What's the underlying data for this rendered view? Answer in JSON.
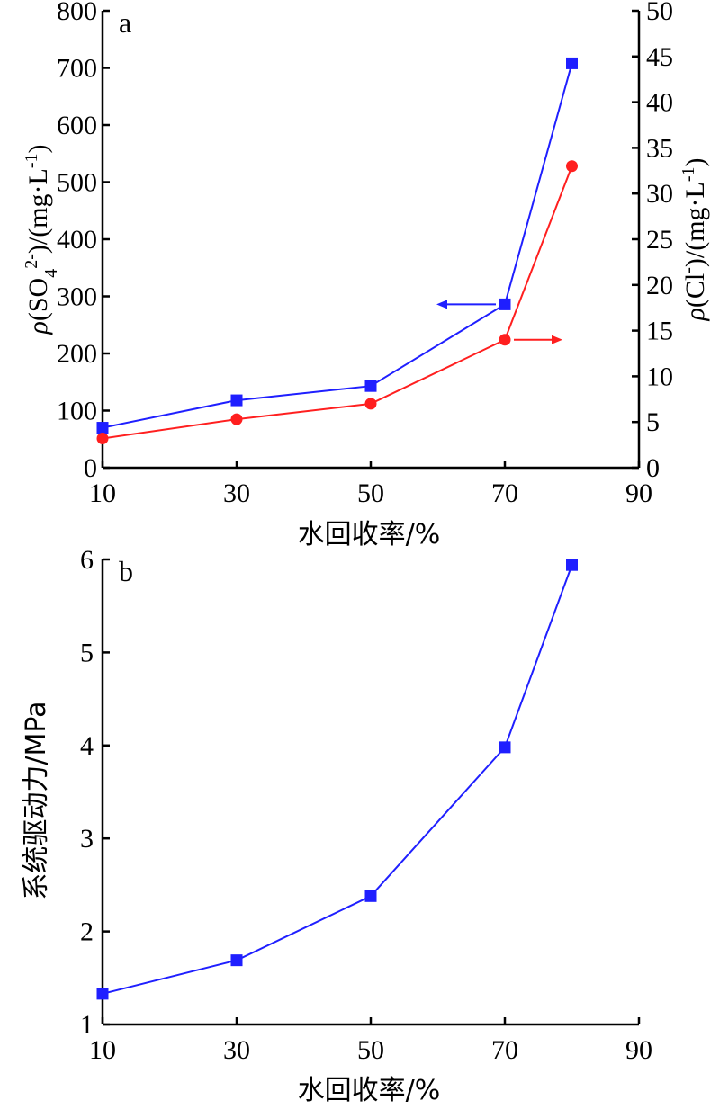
{
  "chart_data": [
    {
      "type": "line",
      "panel_label": "a",
      "xlabel": "水回收率/%",
      "xlim": [
        10,
        90
      ],
      "xticks": [
        10,
        30,
        50,
        70,
        90
      ],
      "x": [
        10,
        30,
        50,
        70,
        80
      ],
      "ylabel_left": {
        "rho": "ρ",
        "open": "(SO",
        "sub": "4",
        "sup": "2-",
        "close": ")/(mg·L",
        "sup2": "-1",
        "end": ")"
      },
      "ylim_left": [
        0,
        800
      ],
      "yticks_left": [
        0,
        100,
        200,
        300,
        400,
        500,
        600,
        700,
        800
      ],
      "ylabel_right": {
        "rho": "ρ",
        "open": "(Cl",
        "sup": "-",
        "close": ")/(mg·L",
        "sup2": "-1",
        "end": ")"
      },
      "ylim_right": [
        0,
        50
      ],
      "yticks_right": [
        0,
        5,
        10,
        15,
        20,
        25,
        30,
        35,
        40,
        45,
        50
      ],
      "series": [
        {
          "values": [
            70,
            118,
            143,
            286,
            708
          ],
          "axis": "left",
          "marker": "square",
          "color": "#1f1fff"
        },
        {
          "values": [
            3.2,
            5.3,
            7.0,
            14.0,
            33.0
          ],
          "axis": "right",
          "marker": "circle",
          "color": "#ff1f1f"
        }
      ],
      "annotations": [
        {
          "type": "arrow",
          "direction": "left",
          "series": 0,
          "color": "#1f1fff"
        },
        {
          "type": "arrow",
          "direction": "right",
          "series": 1,
          "color": "#ff1f1f"
        }
      ]
    },
    {
      "type": "line",
      "panel_label": "b",
      "xlabel": "水回收率/%",
      "xlim": [
        10,
        90
      ],
      "xticks": [
        10,
        30,
        50,
        70,
        90
      ],
      "x": [
        10,
        30,
        50,
        70,
        80
      ],
      "ylabel": "系统驱动力/MPa",
      "ylim": [
        1,
        6
      ],
      "yticks": [
        1,
        2,
        3,
        4,
        5,
        6
      ],
      "series": [
        {
          "values": [
            1.33,
            1.69,
            2.38,
            3.98,
            5.94
          ],
          "marker": "square",
          "color": "#1f1fff"
        }
      ]
    }
  ]
}
